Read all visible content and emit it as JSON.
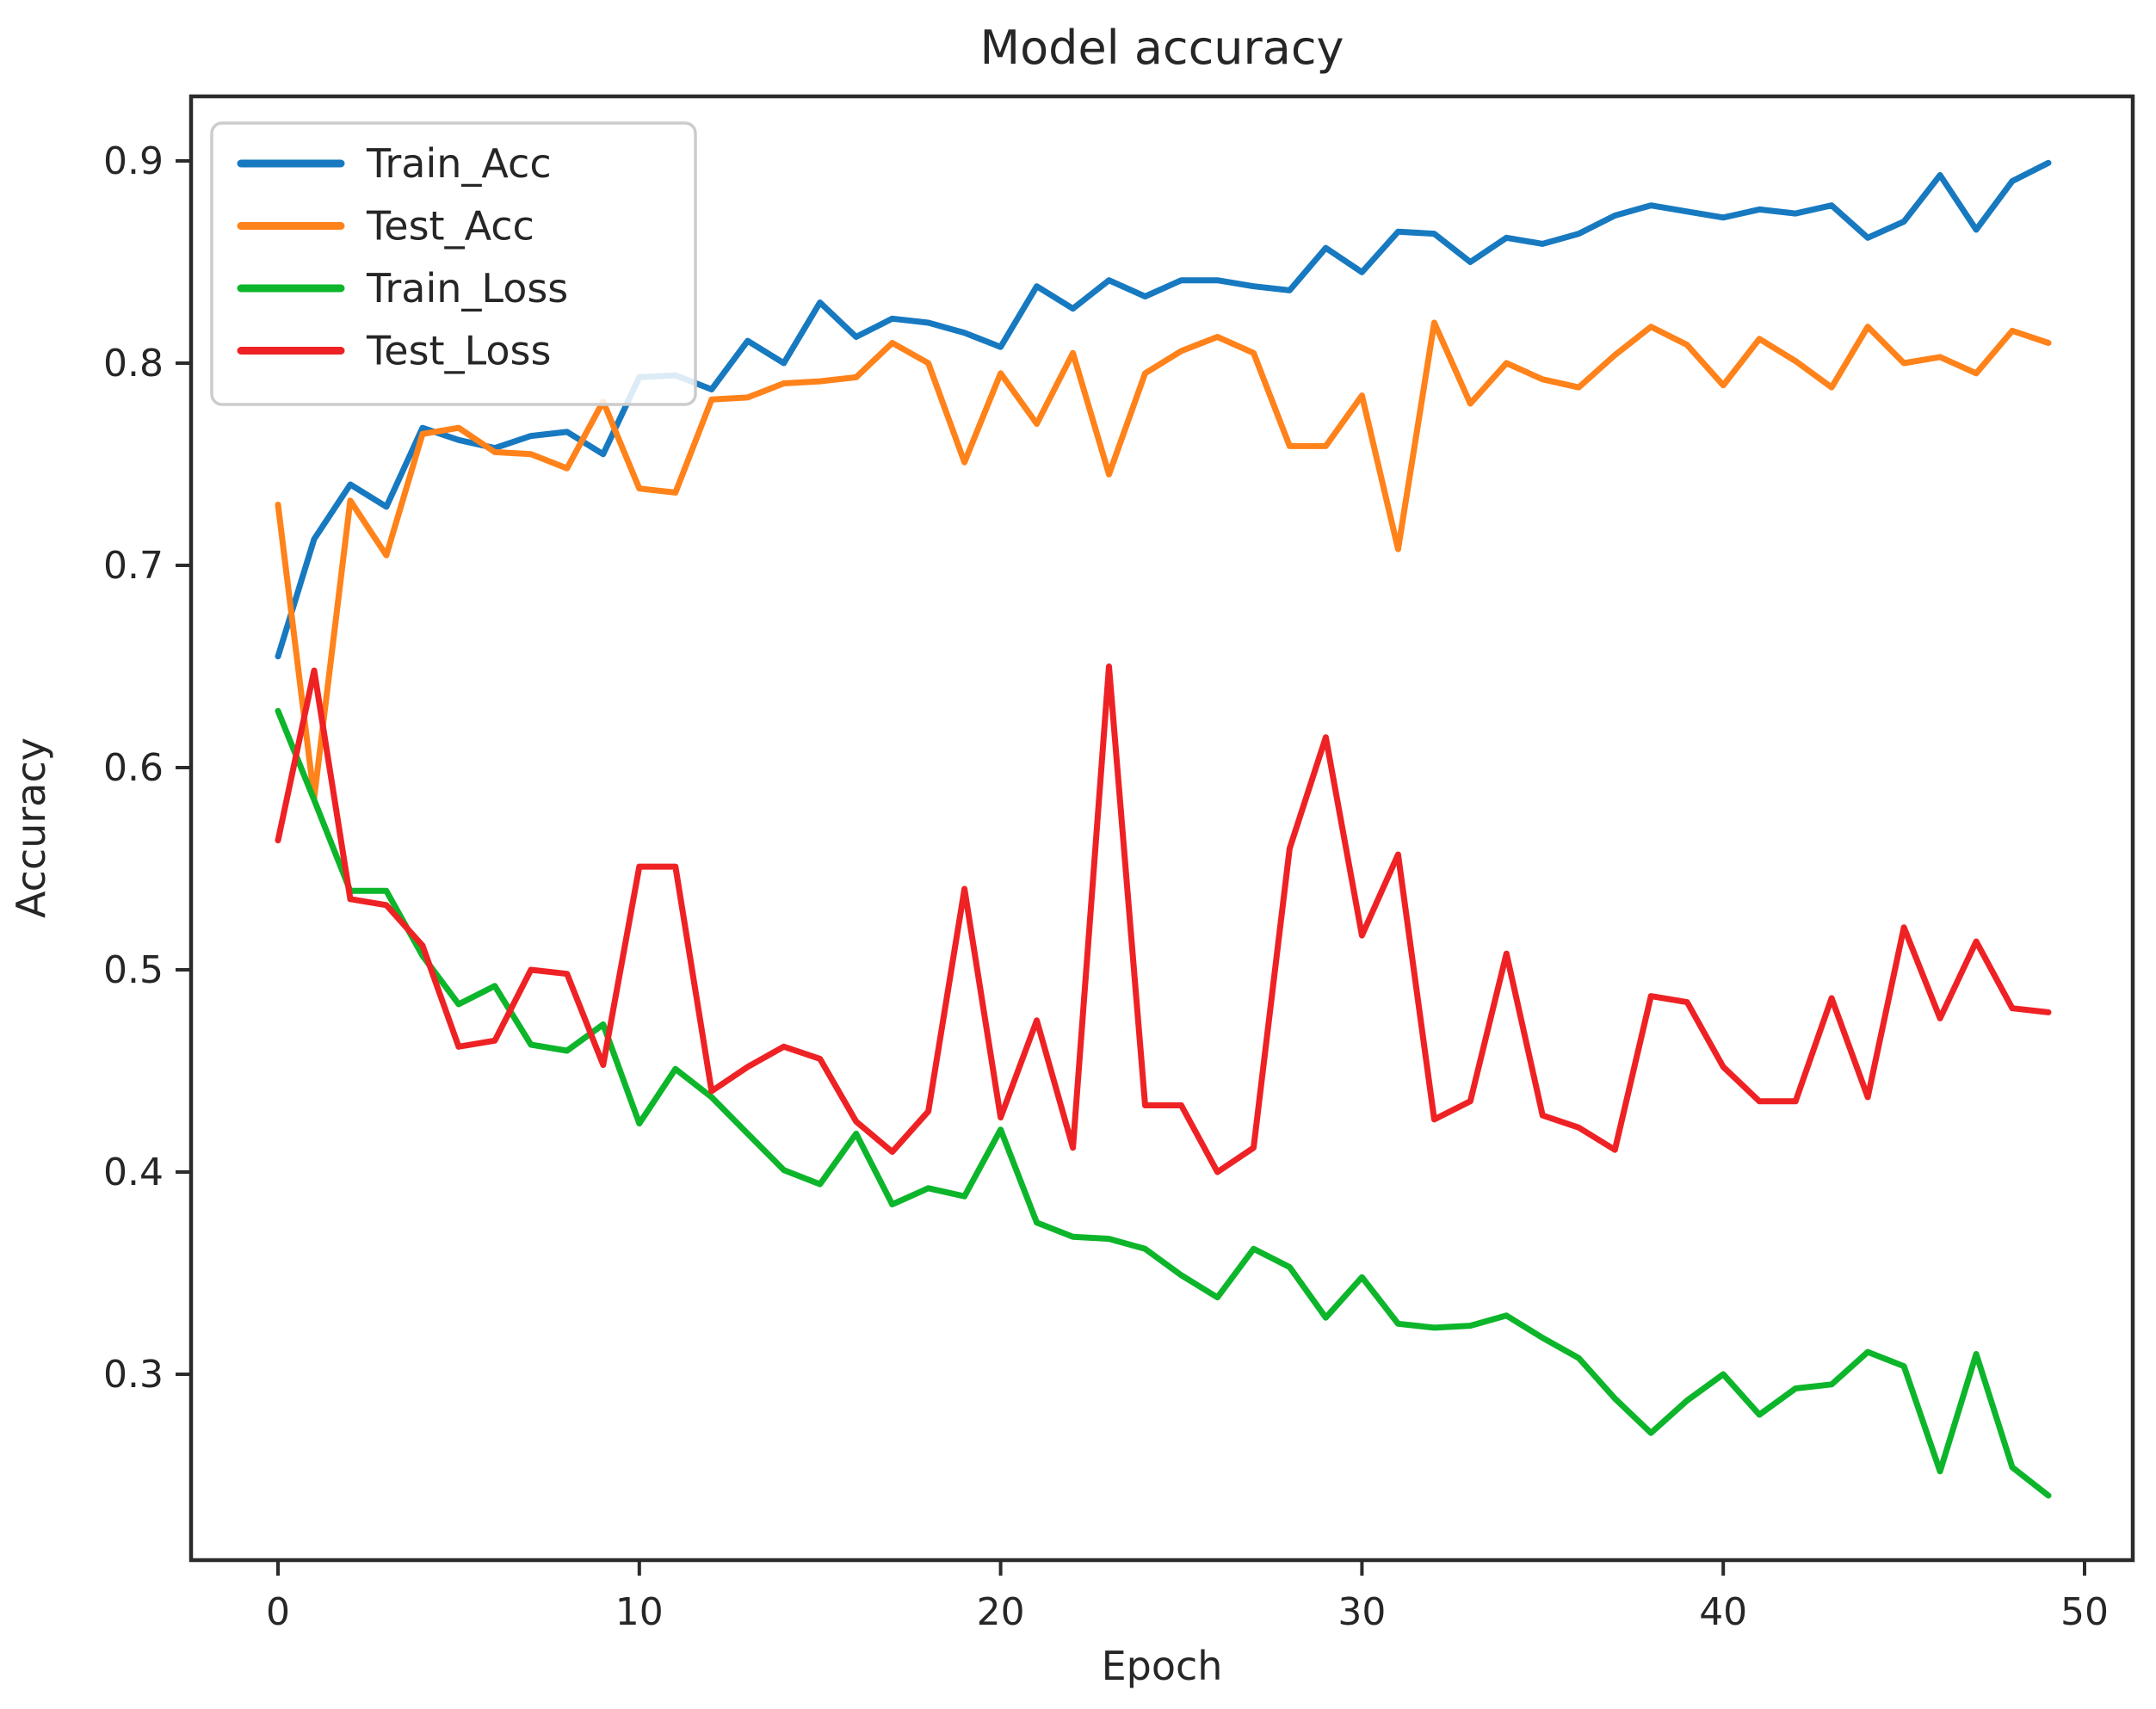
{
  "chart_data": {
    "type": "line",
    "title": "Model accuracy",
    "xlabel": "Epoch",
    "ylabel": "Accuracy",
    "grid": false,
    "legend_position": "upper left",
    "axis_color": "#2b2b2b",
    "background_color": "#ffffff",
    "x_ticks": [
      0,
      10,
      20,
      30,
      40,
      50
    ],
    "y_ticks": [
      0.3,
      0.4,
      0.5,
      0.6,
      0.7,
      0.8,
      0.9
    ],
    "xlim": [
      -2.45,
      51.3
    ],
    "ylim": [
      0.208,
      0.932
    ],
    "x": [
      0,
      1,
      2,
      3,
      4,
      5,
      6,
      7,
      8,
      9,
      10,
      11,
      12,
      13,
      14,
      15,
      16,
      17,
      18,
      19,
      20,
      21,
      22,
      23,
      24,
      25,
      26,
      27,
      28,
      29,
      30,
      31,
      32,
      33,
      34,
      35,
      36,
      37,
      38,
      39,
      40,
      41,
      42,
      43,
      44,
      45,
      46,
      47,
      48,
      49
    ],
    "series": [
      {
        "name": "Train_Acc",
        "color": "#1779c0",
        "values": [
          0.655,
          0.713,
          0.74,
          0.729,
          0.768,
          0.762,
          0.758,
          0.764,
          0.766,
          0.755,
          0.793,
          0.794,
          0.787,
          0.811,
          0.8,
          0.83,
          0.813,
          0.822,
          0.82,
          0.815,
          0.808,
          0.838,
          0.827,
          0.841,
          0.833,
          0.841,
          0.841,
          0.838,
          0.836,
          0.857,
          0.845,
          0.865,
          0.864,
          0.85,
          0.862,
          0.859,
          0.864,
          0.873,
          0.878,
          0.875,
          0.872,
          0.876,
          0.874,
          0.878,
          0.862,
          0.87,
          0.893,
          0.866,
          0.89,
          0.899
        ]
      },
      {
        "name": "Test_Acc",
        "color": "#ff821a",
        "values": [
          0.73,
          0.585,
          0.732,
          0.705,
          0.765,
          0.768,
          0.756,
          0.755,
          0.748,
          0.781,
          0.738,
          0.736,
          0.782,
          0.783,
          0.79,
          0.791,
          0.793,
          0.81,
          0.8,
          0.751,
          0.795,
          0.77,
          0.805,
          0.745,
          0.795,
          0.806,
          0.813,
          0.805,
          0.759,
          0.759,
          0.784,
          0.708,
          0.82,
          0.78,
          0.8,
          0.792,
          0.788,
          0.804,
          0.818,
          0.809,
          0.789,
          0.812,
          0.801,
          0.788,
          0.818,
          0.8,
          0.803,
          0.795,
          0.816,
          0.81
        ]
      },
      {
        "name": "Train_Loss",
        "color": "#0db52b",
        "values": [
          0.628,
          0.584,
          0.539,
          0.539,
          0.507,
          0.483,
          0.492,
          0.463,
          0.46,
          0.473,
          0.424,
          0.451,
          0.437,
          0.419,
          0.401,
          0.394,
          0.419,
          0.384,
          0.392,
          0.388,
          0.421,
          0.375,
          0.368,
          0.367,
          0.362,
          0.349,
          0.338,
          0.362,
          0.353,
          0.328,
          0.348,
          0.325,
          0.323,
          0.324,
          0.329,
          0.318,
          0.308,
          0.288,
          0.271,
          0.287,
          0.3,
          0.28,
          0.293,
          0.295,
          0.311,
          0.304,
          0.252,
          0.31,
          0.254,
          0.24
        ]
      },
      {
        "name": "Test_Loss",
        "color": "#ee2224",
        "values": [
          0.564,
          0.648,
          0.535,
          0.532,
          0.512,
          0.462,
          0.465,
          0.5,
          0.498,
          0.453,
          0.551,
          0.551,
          0.44,
          0.452,
          0.462,
          0.456,
          0.425,
          0.41,
          0.43,
          0.54,
          0.427,
          0.475,
          0.412,
          0.65,
          0.433,
          0.433,
          0.4,
          0.412,
          0.56,
          0.615,
          0.517,
          0.557,
          0.426,
          0.435,
          0.508,
          0.428,
          0.422,
          0.411,
          0.487,
          0.484,
          0.452,
          0.435,
          0.435,
          0.486,
          0.437,
          0.521,
          0.476,
          0.514,
          0.481,
          0.479
        ]
      }
    ]
  }
}
